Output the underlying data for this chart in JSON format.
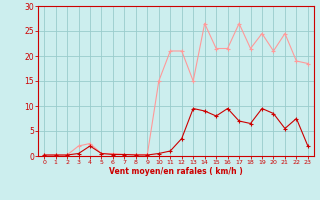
{
  "x": [
    0,
    1,
    2,
    3,
    4,
    5,
    6,
    7,
    8,
    9,
    10,
    11,
    12,
    13,
    14,
    15,
    16,
    17,
    18,
    19,
    20,
    21,
    22,
    23
  ],
  "rafales": [
    0.2,
    0.2,
    0.2,
    2.0,
    2.5,
    0.5,
    0.5,
    0.3,
    0.3,
    0.3,
    15.0,
    21.0,
    21.0,
    15.0,
    26.5,
    21.5,
    21.5,
    26.5,
    21.5,
    24.5,
    21.0,
    24.5,
    19.0,
    18.5
  ],
  "moyen": [
    0.2,
    0.2,
    0.2,
    0.5,
    2.0,
    0.5,
    0.3,
    0.3,
    0.2,
    0.2,
    0.5,
    1.0,
    3.5,
    9.5,
    9.0,
    8.0,
    9.5,
    7.0,
    6.5,
    9.5,
    8.5,
    5.5,
    7.5,
    2.0
  ],
  "color_rafales": "#ff9999",
  "color_moyen": "#cc0000",
  "bg_color": "#cceeee",
  "grid_color": "#99cccc",
  "axis_color": "#cc0000",
  "xlabel": "Vent moyen/en rafales ( km/h )",
  "ylim": [
    0,
    30
  ],
  "yticks": [
    0,
    5,
    10,
    15,
    20,
    25,
    30
  ],
  "xticks": [
    0,
    1,
    2,
    3,
    4,
    5,
    6,
    7,
    8,
    9,
    10,
    11,
    12,
    13,
    14,
    15,
    16,
    17,
    18,
    19,
    20,
    21,
    22,
    23
  ]
}
